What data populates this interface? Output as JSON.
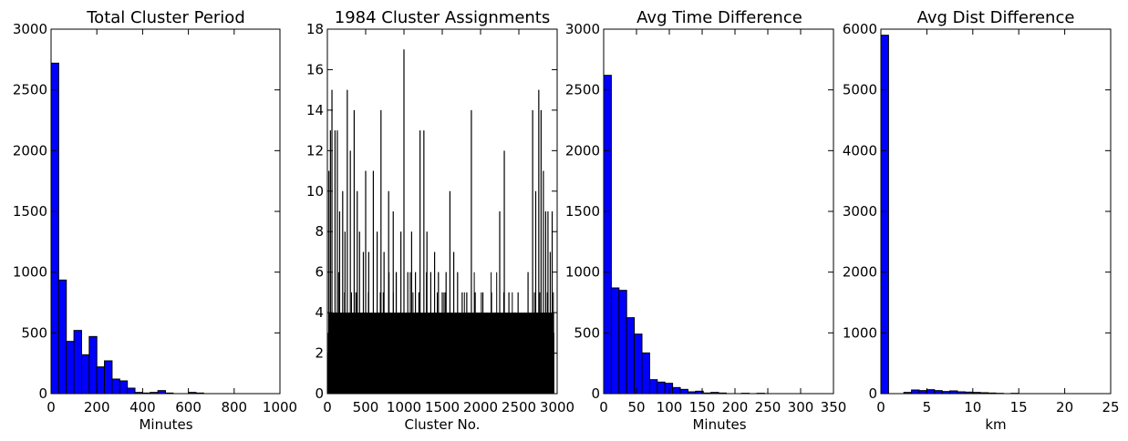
{
  "chart_data": [
    {
      "type": "bar",
      "title": "Total Cluster Period",
      "xlabel": "Minutes",
      "ylabel": "",
      "xlim": [
        0,
        1000
      ],
      "ylim": [
        0,
        3000
      ],
      "xticks": [
        0,
        200,
        400,
        600,
        800,
        1000
      ],
      "yticks": [
        0,
        500,
        1000,
        1500,
        2000,
        2500,
        3000
      ],
      "bar_color": "#0000ff",
      "bin_width": 33.3,
      "bins": [
        {
          "x": 0,
          "y": 2720
        },
        {
          "x": 33.3,
          "y": 935
        },
        {
          "x": 66.7,
          "y": 430
        },
        {
          "x": 100,
          "y": 520
        },
        {
          "x": 133.3,
          "y": 320
        },
        {
          "x": 166.7,
          "y": 470
        },
        {
          "x": 200,
          "y": 220
        },
        {
          "x": 233.3,
          "y": 270
        },
        {
          "x": 266.7,
          "y": 120
        },
        {
          "x": 300,
          "y": 105
        },
        {
          "x": 333.3,
          "y": 45
        },
        {
          "x": 366.7,
          "y": 10
        },
        {
          "x": 400,
          "y": 5
        },
        {
          "x": 433.3,
          "y": 10
        },
        {
          "x": 466.7,
          "y": 25
        },
        {
          "x": 500,
          "y": 5
        },
        {
          "x": 533.3,
          "y": 0
        },
        {
          "x": 566.7,
          "y": 0
        },
        {
          "x": 600,
          "y": 10
        },
        {
          "x": 633.3,
          "y": 5
        }
      ]
    },
    {
      "type": "bar",
      "title": "1984 Cluster Assignments",
      "xlabel": "Cluster No.",
      "ylabel": "",
      "xlim": [
        0,
        3000
      ],
      "ylim": [
        0,
        18
      ],
      "xticks": [
        0,
        500,
        1000,
        1500,
        2000,
        2500,
        3000
      ],
      "yticks": [
        0,
        2,
        4,
        6,
        8,
        10,
        12,
        14,
        16,
        18
      ],
      "bar_color": "#000000",
      "peaks": [
        {
          "x": 20,
          "y": 11
        },
        {
          "x": 40,
          "y": 13
        },
        {
          "x": 60,
          "y": 15
        },
        {
          "x": 100,
          "y": 13
        },
        {
          "x": 130,
          "y": 13
        },
        {
          "x": 160,
          "y": 9
        },
        {
          "x": 200,
          "y": 10
        },
        {
          "x": 230,
          "y": 8
        },
        {
          "x": 260,
          "y": 15
        },
        {
          "x": 300,
          "y": 12
        },
        {
          "x": 350,
          "y": 14
        },
        {
          "x": 390,
          "y": 10
        },
        {
          "x": 420,
          "y": 8
        },
        {
          "x": 470,
          "y": 7
        },
        {
          "x": 500,
          "y": 11
        },
        {
          "x": 540,
          "y": 7
        },
        {
          "x": 600,
          "y": 11
        },
        {
          "x": 650,
          "y": 8
        },
        {
          "x": 700,
          "y": 14
        },
        {
          "x": 740,
          "y": 7
        },
        {
          "x": 800,
          "y": 10
        },
        {
          "x": 860,
          "y": 9
        },
        {
          "x": 900,
          "y": 6
        },
        {
          "x": 960,
          "y": 8
        },
        {
          "x": 1000,
          "y": 17
        },
        {
          "x": 1050,
          "y": 6
        },
        {
          "x": 1100,
          "y": 8
        },
        {
          "x": 1150,
          "y": 6
        },
        {
          "x": 1210,
          "y": 13
        },
        {
          "x": 1260,
          "y": 13
        },
        {
          "x": 1300,
          "y": 8
        },
        {
          "x": 1350,
          "y": 6
        },
        {
          "x": 1400,
          "y": 7
        },
        {
          "x": 1450,
          "y": 6
        },
        {
          "x": 1500,
          "y": 5
        },
        {
          "x": 1550,
          "y": 6
        },
        {
          "x": 1600,
          "y": 10
        },
        {
          "x": 1650,
          "y": 7
        },
        {
          "x": 1700,
          "y": 6
        },
        {
          "x": 1760,
          "y": 5
        },
        {
          "x": 1820,
          "y": 5
        },
        {
          "x": 1880,
          "y": 14
        },
        {
          "x": 1930,
          "y": 5
        },
        {
          "x": 1980,
          "y": 4
        },
        {
          "x": 2030,
          "y": 5
        },
        {
          "x": 2080,
          "y": 4
        },
        {
          "x": 2140,
          "y": 5
        },
        {
          "x": 2200,
          "y": 4
        },
        {
          "x": 2250,
          "y": 9
        },
        {
          "x": 2310,
          "y": 12
        },
        {
          "x": 2370,
          "y": 5
        },
        {
          "x": 2430,
          "y": 4
        },
        {
          "x": 2490,
          "y": 5
        },
        {
          "x": 2560,
          "y": 3
        },
        {
          "x": 2620,
          "y": 6
        },
        {
          "x": 2680,
          "y": 14
        },
        {
          "x": 2720,
          "y": 10
        },
        {
          "x": 2760,
          "y": 15
        },
        {
          "x": 2790,
          "y": 14
        },
        {
          "x": 2820,
          "y": 11
        },
        {
          "x": 2850,
          "y": 9
        },
        {
          "x": 2880,
          "y": 9
        },
        {
          "x": 2910,
          "y": 7
        },
        {
          "x": 2935,
          "y": 9
        },
        {
          "x": 2950,
          "y": 4
        }
      ]
    },
    {
      "type": "bar",
      "title": "Avg Time Difference",
      "xlabel": "Minutes",
      "ylabel": "",
      "xlim": [
        0,
        350
      ],
      "ylim": [
        0,
        3000
      ],
      "xticks": [
        0,
        50,
        100,
        150,
        200,
        250,
        300,
        350
      ],
      "yticks": [
        0,
        500,
        1000,
        1500,
        2000,
        2500,
        3000
      ],
      "bar_color": "#0000ff",
      "bin_width": 11.67,
      "bins": [
        {
          "x": 0,
          "y": 2620
        },
        {
          "x": 11.67,
          "y": 870
        },
        {
          "x": 23.33,
          "y": 850
        },
        {
          "x": 35,
          "y": 625
        },
        {
          "x": 46.67,
          "y": 490
        },
        {
          "x": 58.33,
          "y": 335
        },
        {
          "x": 70,
          "y": 115
        },
        {
          "x": 81.67,
          "y": 95
        },
        {
          "x": 93.33,
          "y": 85
        },
        {
          "x": 105,
          "y": 50
        },
        {
          "x": 116.67,
          "y": 35
        },
        {
          "x": 128.33,
          "y": 15
        },
        {
          "x": 140,
          "y": 20
        },
        {
          "x": 151.67,
          "y": 5
        },
        {
          "x": 163.33,
          "y": 10
        },
        {
          "x": 175,
          "y": 5
        },
        {
          "x": 186.67,
          "y": 0
        },
        {
          "x": 198.33,
          "y": 0
        },
        {
          "x": 210,
          "y": 3
        },
        {
          "x": 221.67,
          "y": 0
        },
        {
          "x": 233.33,
          "y": 3
        }
      ]
    },
    {
      "type": "bar",
      "title": "Avg Dist Difference",
      "xlabel": "km",
      "ylabel": "",
      "xlim": [
        0,
        25
      ],
      "ylim": [
        0,
        6000
      ],
      "xticks": [
        0,
        5,
        10,
        15,
        20,
        25
      ],
      "yticks": [
        0,
        1000,
        2000,
        3000,
        4000,
        5000,
        6000
      ],
      "bar_color": "#0000ff",
      "bin_width": 0.833,
      "bins": [
        {
          "x": 0,
          "y": 5900
        },
        {
          "x": 0.833,
          "y": 0
        },
        {
          "x": 1.667,
          "y": 0
        },
        {
          "x": 2.5,
          "y": 20
        },
        {
          "x": 3.333,
          "y": 60
        },
        {
          "x": 4.167,
          "y": 50
        },
        {
          "x": 5,
          "y": 65
        },
        {
          "x": 5.833,
          "y": 50
        },
        {
          "x": 6.667,
          "y": 35
        },
        {
          "x": 7.5,
          "y": 45
        },
        {
          "x": 8.333,
          "y": 30
        },
        {
          "x": 9.167,
          "y": 25
        },
        {
          "x": 10,
          "y": 20
        },
        {
          "x": 10.833,
          "y": 15
        },
        {
          "x": 11.667,
          "y": 10
        },
        {
          "x": 12.5,
          "y": 5
        },
        {
          "x": 13.333,
          "y": 0
        },
        {
          "x": 14.167,
          "y": 5
        }
      ]
    }
  ]
}
